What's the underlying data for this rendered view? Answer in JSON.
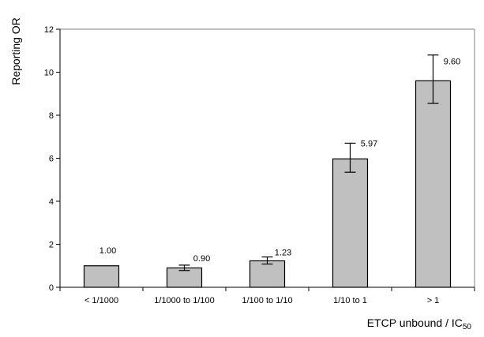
{
  "chart_data": {
    "type": "bar",
    "categories": [
      "< 1/1000",
      "1/1000 to 1/100",
      "1/100 to 1/10",
      "1/10 to 1",
      "> 1"
    ],
    "values": [
      1.0,
      0.9,
      1.23,
      5.97,
      9.6
    ],
    "value_labels": [
      "1.00",
      "0.90",
      "1.23",
      "5.97",
      "9.60"
    ],
    "error_bars": [
      {
        "low": 1.0,
        "high": 1.0
      },
      {
        "low": 0.78,
        "high": 1.03
      },
      {
        "low": 1.08,
        "high": 1.41
      },
      {
        "low": 5.35,
        "high": 6.7
      },
      {
        "low": 8.55,
        "high": 10.8
      }
    ],
    "ylabel": "Reporting OR",
    "xlabel_main": "ETCP unbound / IC",
    "xlabel_sub": "50",
    "ylim": [
      0,
      12
    ],
    "yticks": [
      0,
      2,
      4,
      6,
      8,
      10,
      12
    ],
    "grid": false,
    "legend": "none",
    "colors": {
      "bar_fill": "#c0c0c0",
      "bar_stroke": "#000000",
      "axis": "#000000",
      "frame": "#808080",
      "error_bar": "#000000"
    }
  }
}
